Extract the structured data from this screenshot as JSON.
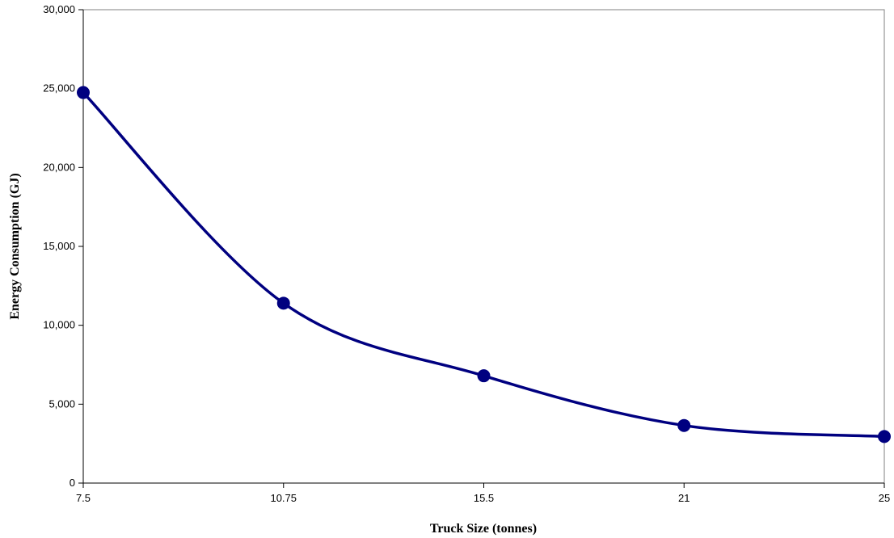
{
  "chart_data": {
    "type": "line",
    "title": "",
    "xlabel": "Truck Size (tonnes)",
    "ylabel": "Energy Consumption (GJ)",
    "categories": [
      "7.5",
      "10.75",
      "15.5",
      "21",
      "25"
    ],
    "series": [
      {
        "values": [
          24750,
          11400,
          6800,
          3650,
          2950
        ],
        "color": "#000080"
      }
    ],
    "ylim": [
      0,
      30000
    ],
    "yticks": [
      0,
      5000,
      10000,
      15000,
      20000,
      25000,
      30000
    ],
    "ytick_labels": [
      "0",
      "5,000",
      "10,000",
      "15,000",
      "20,000",
      "25,000",
      "30,000"
    ],
    "grid": false,
    "legend": "none",
    "line_style": "smoothed",
    "marker": "circle"
  }
}
